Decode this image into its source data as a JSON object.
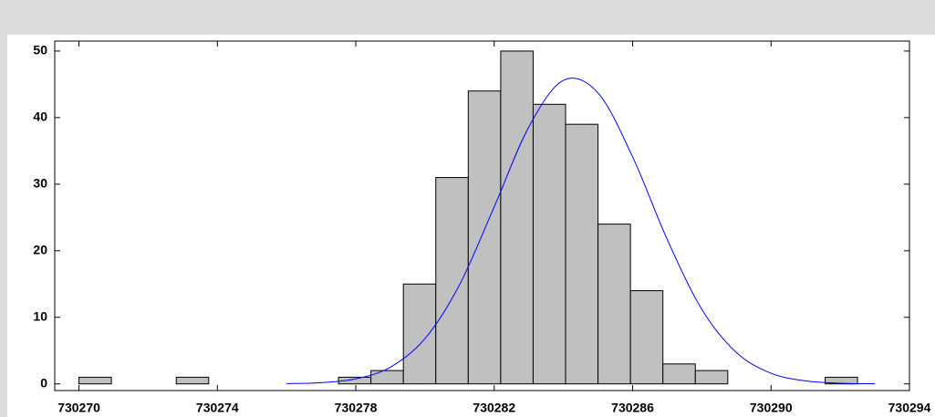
{
  "chart_data": {
    "type": "histogram",
    "bins": [
      730270,
      730270.9375,
      730271.875,
      730272.8125,
      730273.75,
      730274.6875,
      730275.625,
      730276.5625,
      730277.5,
      730278.4375,
      730279.375,
      730280.3125,
      730281.25,
      730282.1875,
      730283.125,
      730284.0625,
      730285,
      730285.9375,
      730286.875,
      730287.8125,
      730288.75,
      730289.6875,
      730290.625,
      730291.5625,
      730292.5
    ],
    "counts": [
      1,
      0,
      0,
      1,
      0,
      0,
      0,
      0,
      1,
      2,
      15,
      31,
      44,
      50,
      42,
      39,
      24,
      14,
      3,
      2,
      0,
      0,
      0,
      1
    ],
    "color": "#c0c0c0",
    "curve": {
      "color": "#0000ff",
      "x": [
        730276,
        730277,
        730278,
        730279,
        730280,
        730281,
        730282,
        730283,
        730284,
        730285,
        730286,
        730287,
        730288,
        730289,
        730290,
        730291,
        730292,
        730293
      ],
      "values": [
        0.04,
        0.19,
        0.76,
        2.5,
        6.8,
        14.9,
        26.6,
        38.6,
        45.6,
        43.7,
        34.1,
        21.7,
        11.2,
        4.7,
        1.6,
        0.45,
        0.1,
        0.02
      ]
    },
    "xlim": [
      730269.3,
      730294
    ],
    "xticks": [
      730270,
      730274,
      730278,
      730282,
      730286,
      730290,
      730294
    ],
    "ylim": [
      -1,
      51.5
    ],
    "yticks": [
      0,
      10,
      20,
      30,
      40,
      50
    ]
  }
}
